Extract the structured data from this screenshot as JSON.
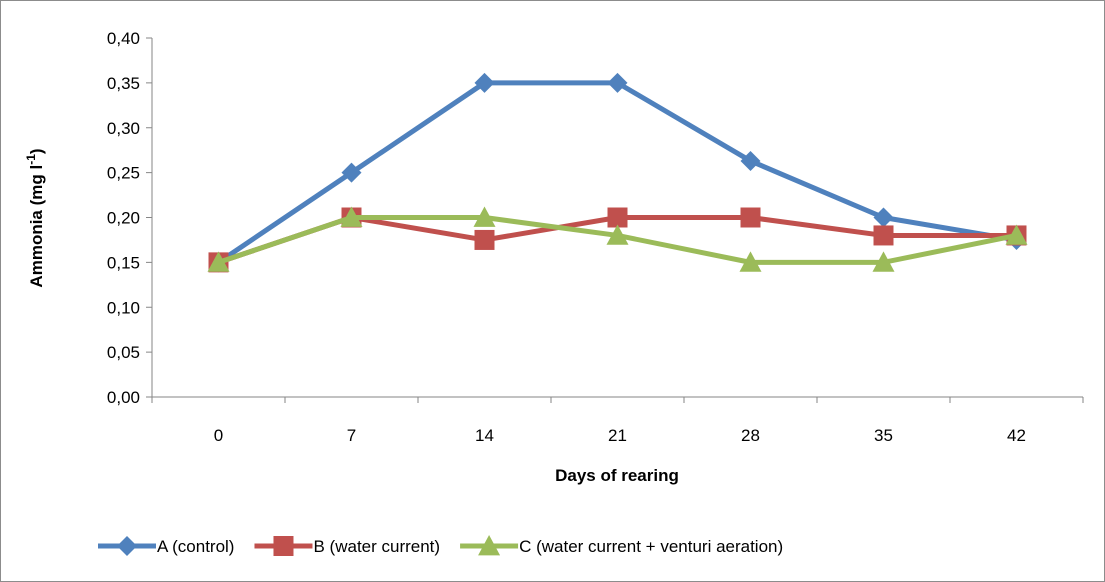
{
  "chart_data": {
    "type": "line",
    "title": "",
    "xlabel": "Days of rearing",
    "ylabel": "Ammonia (mg l",
    "ylabel_superscript": "-1",
    "ylabel_suffix": ")",
    "categories": [
      "0",
      "7",
      "14",
      "21",
      "28",
      "35",
      "42"
    ],
    "y_ticks": [
      "0,00",
      "0,05",
      "0,10",
      "0,15",
      "0,20",
      "0,25",
      "0,30",
      "0,35",
      "0,40"
    ],
    "ylim": [
      0,
      0.4
    ],
    "grid": false,
    "legend_position": "bottom",
    "series": [
      {
        "name": "A (control)",
        "color": "#4f81bd",
        "marker": "diamond",
        "values": [
          0.15,
          0.25,
          0.35,
          0.35,
          0.263,
          0.2,
          0.175
        ]
      },
      {
        "name": "B (water current)",
        "color": "#c0504d",
        "marker": "square",
        "values": [
          0.15,
          0.2,
          0.175,
          0.2,
          0.2,
          0.18,
          0.18
        ]
      },
      {
        "name": "C (water current + venturi aeration)",
        "color": "#9bbb59",
        "marker": "triangle",
        "values": [
          0.15,
          0.2,
          0.2,
          0.18,
          0.15,
          0.15,
          0.18
        ]
      }
    ]
  }
}
